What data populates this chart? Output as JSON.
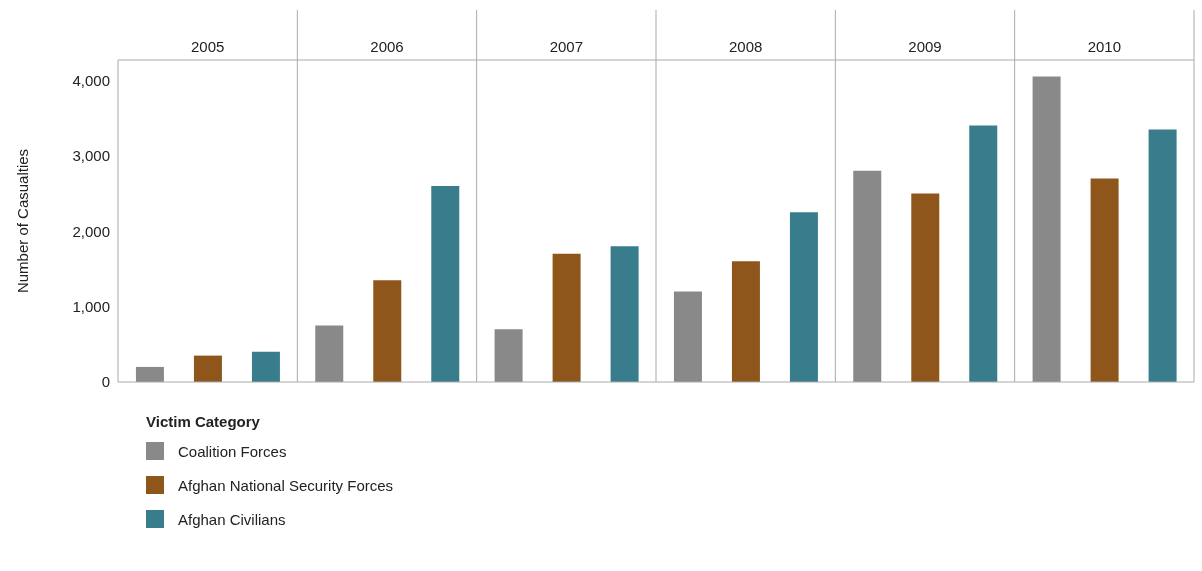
{
  "chart_data": {
    "type": "bar",
    "ylabel": "Number of Casualties",
    "legend_title": "Victim Category",
    "legend": "bottom",
    "categories": [
      "2005",
      "2006",
      "2007",
      "2008",
      "2009",
      "2010"
    ],
    "series": [
      {
        "name": "Coalition Forces",
        "color": "#898989",
        "values": [
          200,
          750,
          700,
          1200,
          2800,
          4050
        ]
      },
      {
        "name": "Afghan National Security Forces",
        "color": "#8f561c",
        "values": [
          350,
          1350,
          1700,
          1600,
          2500,
          2700
        ]
      },
      {
        "name": "Afghan Civilians",
        "color": "#397d8d",
        "values": [
          400,
          2600,
          1800,
          2250,
          3400,
          3350
        ]
      }
    ],
    "ylim": [
      0,
      4270
    ],
    "yticks": [
      0,
      {
        "value": 1000,
        "label": "1,000"
      },
      {
        "value": 2000,
        "label": "2,000"
      },
      {
        "value": 3000,
        "label": "3,000"
      },
      {
        "value": 4000,
        "label": "4,000"
      }
    ]
  }
}
